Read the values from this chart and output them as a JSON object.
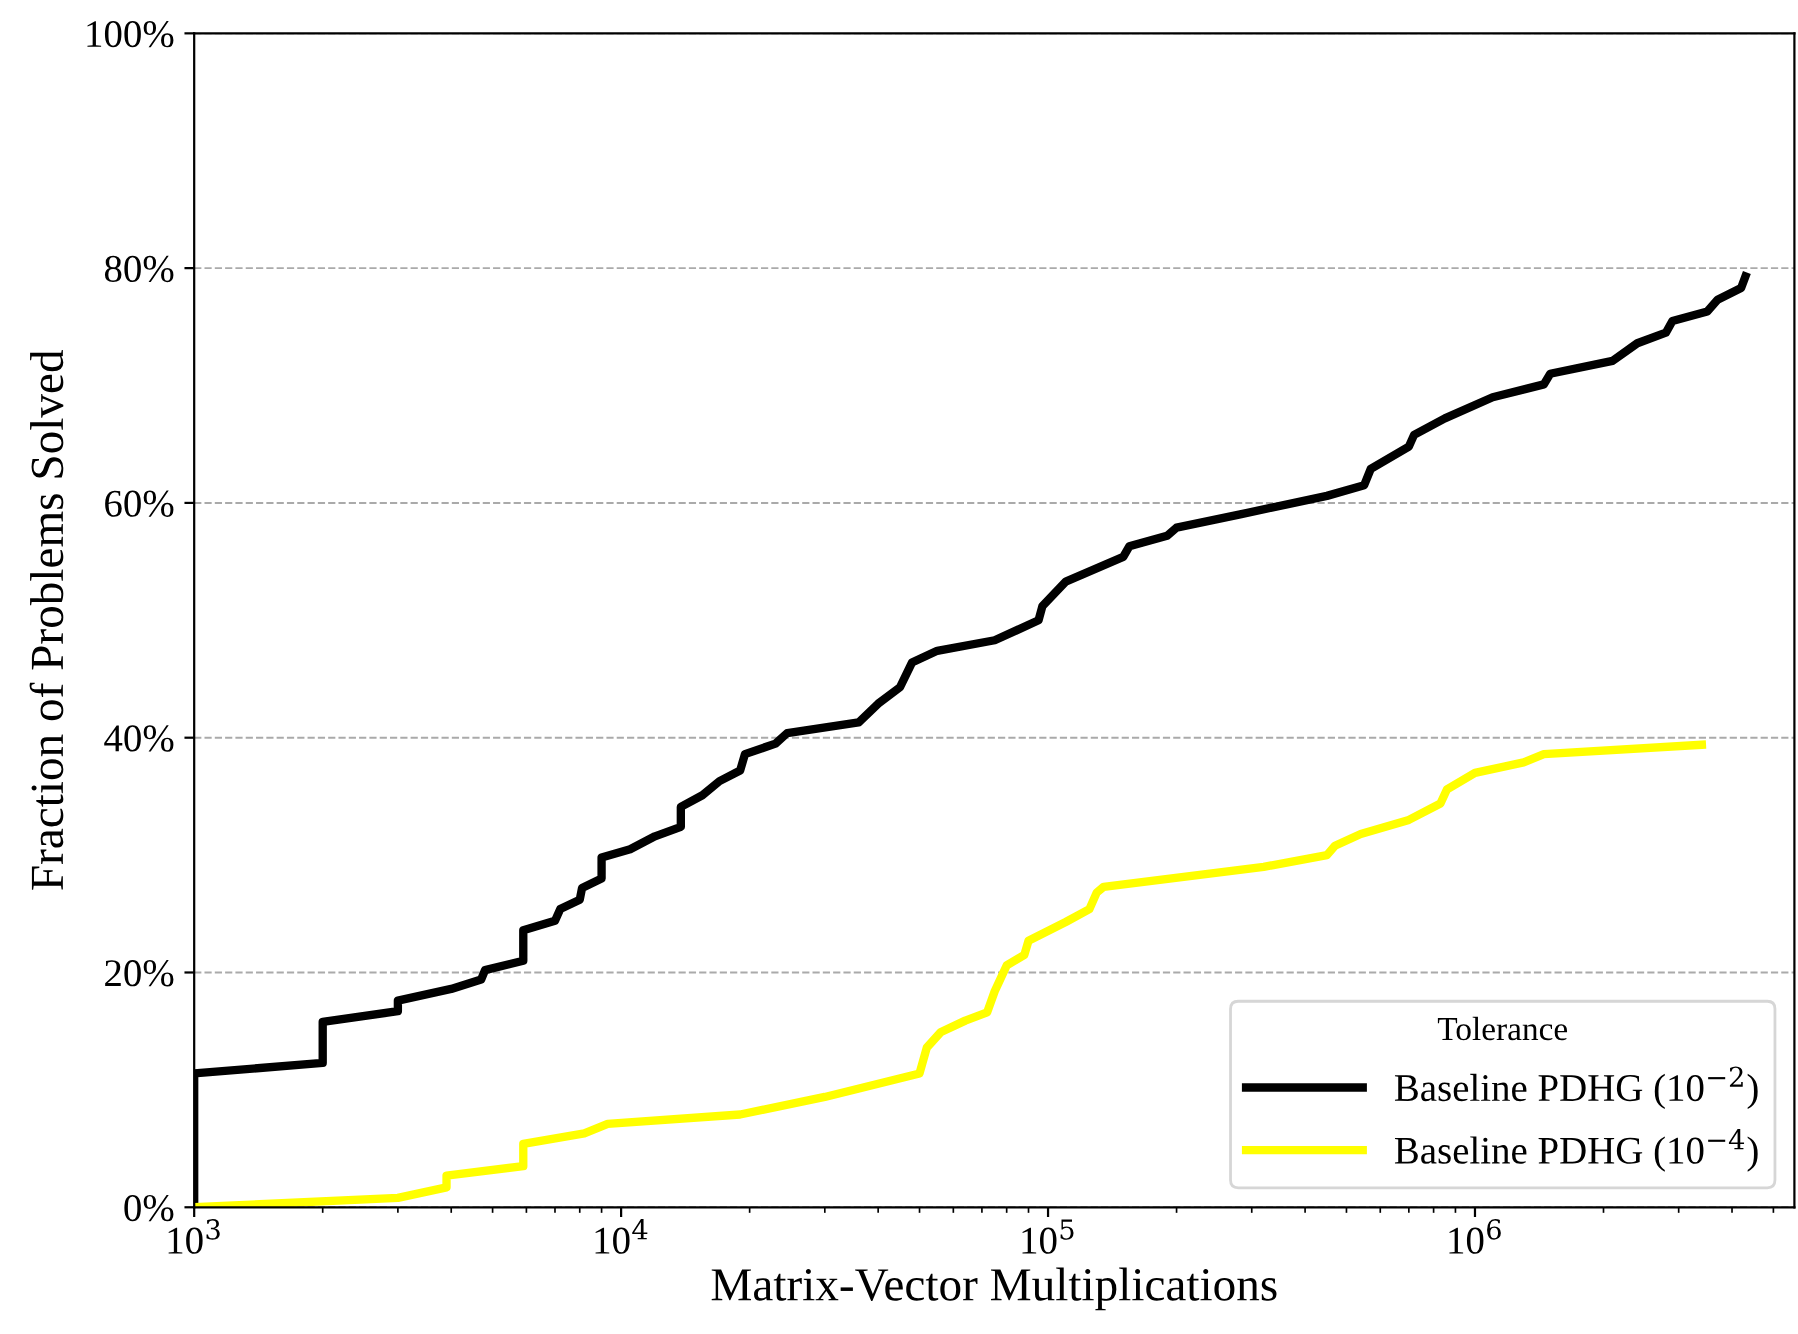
{
  "chart_data": {
    "type": "line",
    "xlabel": "Matrix-Vector Multiplications",
    "ylabel": "Fraction of Problems Solved",
    "legend_title": "Tolerance",
    "legend": "bottom right",
    "grid": "y",
    "log": "x",
    "line_style": "solid",
    "marker": "none",
    "xlim": [
      1000,
      5600000
    ],
    "xticks": [
      {
        "value": 1000,
        "label": "10$^{3}$"
      },
      {
        "value": 10000,
        "label": "10$^{4}$"
      },
      {
        "value": 100000,
        "label": "10$^{5}$"
      },
      {
        "value": 1000000,
        "label": "10$^{6}$"
      }
    ],
    "ylim": [
      0,
      100
    ],
    "yticks": [
      {
        "value": 0,
        "label": "0%"
      },
      {
        "value": 20,
        "label": "20%"
      },
      {
        "value": 40,
        "label": "40%"
      },
      {
        "value": 60,
        "label": "60%"
      },
      {
        "value": 80,
        "label": "80%"
      },
      {
        "value": 100,
        "label": "100%"
      }
    ],
    "series": [
      {
        "name": "Baseline PDHG (10$^{−2}$)",
        "color": "#000000",
        "x": [
          1000,
          1000,
          2000,
          2000,
          3000,
          3000,
          4000,
          4700,
          4800,
          5900,
          5900,
          7000,
          7200,
          8000,
          8100,
          9000,
          9000,
          10500,
          12000,
          13800,
          13800,
          15500,
          17000,
          19000,
          19500,
          23000,
          24500,
          36000,
          40000,
          45000,
          48000,
          55000,
          75000,
          95000,
          97000,
          110000,
          150000,
          155000,
          190000,
          200000,
          280000,
          450000,
          550000,
          570000,
          700000,
          720000,
          850000,
          1100000,
          1450000,
          1500000,
          2100000,
          2400000,
          2800000,
          2900000,
          3500000,
          3700000,
          4200000,
          4300000
        ],
        "values": [
          0,
          11.4,
          12.3,
          15.8,
          16.7,
          17.6,
          18.6,
          19.4,
          20.2,
          21.0,
          23.6,
          24.4,
          25.4,
          26.2,
          27.2,
          28.0,
          29.8,
          30.5,
          31.6,
          32.4,
          34.1,
          35.1,
          36.3,
          37.2,
          38.6,
          39.5,
          40.4,
          41.3,
          42.9,
          44.3,
          46.4,
          47.4,
          48.3,
          50.0,
          51.2,
          53.3,
          55.4,
          56.3,
          57.2,
          57.9,
          59.0,
          60.6,
          61.5,
          62.9,
          64.8,
          65.8,
          67.2,
          69.0,
          70.1,
          71.0,
          72.1,
          73.6,
          74.5,
          75.5,
          76.3,
          77.3,
          78.3,
          79.3
        ]
      },
      {
        "name": "Baseline PDHG (10$^{−4}$)",
        "color": "#ffff00",
        "x": [
          1000,
          3000,
          3900,
          3900,
          5900,
          5900,
          8200,
          9300,
          19000,
          30000,
          50000,
          52000,
          56000,
          64000,
          72000,
          75000,
          80000,
          88000,
          90000,
          110000,
          125000,
          130000,
          135000,
          320000,
          450000,
          470000,
          540000,
          700000,
          830000,
          860000,
          1000000,
          1300000,
          1450000,
          3400000
        ],
        "values": [
          0,
          0.8,
          1.7,
          2.7,
          3.5,
          5.4,
          6.3,
          7.1,
          7.9,
          9.4,
          11.4,
          13.6,
          14.9,
          15.9,
          16.6,
          18.4,
          20.6,
          21.5,
          22.7,
          24.3,
          25.4,
          26.8,
          27.3,
          29.0,
          30.0,
          30.8,
          31.8,
          33.0,
          34.4,
          35.6,
          37.0,
          37.9,
          38.6,
          39.4
        ]
      }
    ]
  }
}
